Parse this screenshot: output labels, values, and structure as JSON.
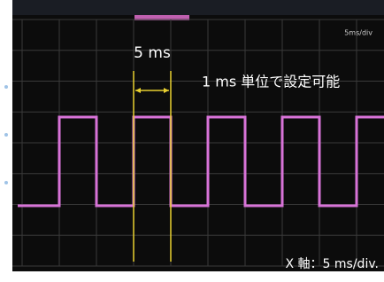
{
  "screen": {
    "timebase_label": "5ms/div"
  },
  "annotations": {
    "period": "5 ms",
    "setting": "1 ms 単位で設定可能",
    "x_axis": "X 軸：5 ms/div."
  }
}
